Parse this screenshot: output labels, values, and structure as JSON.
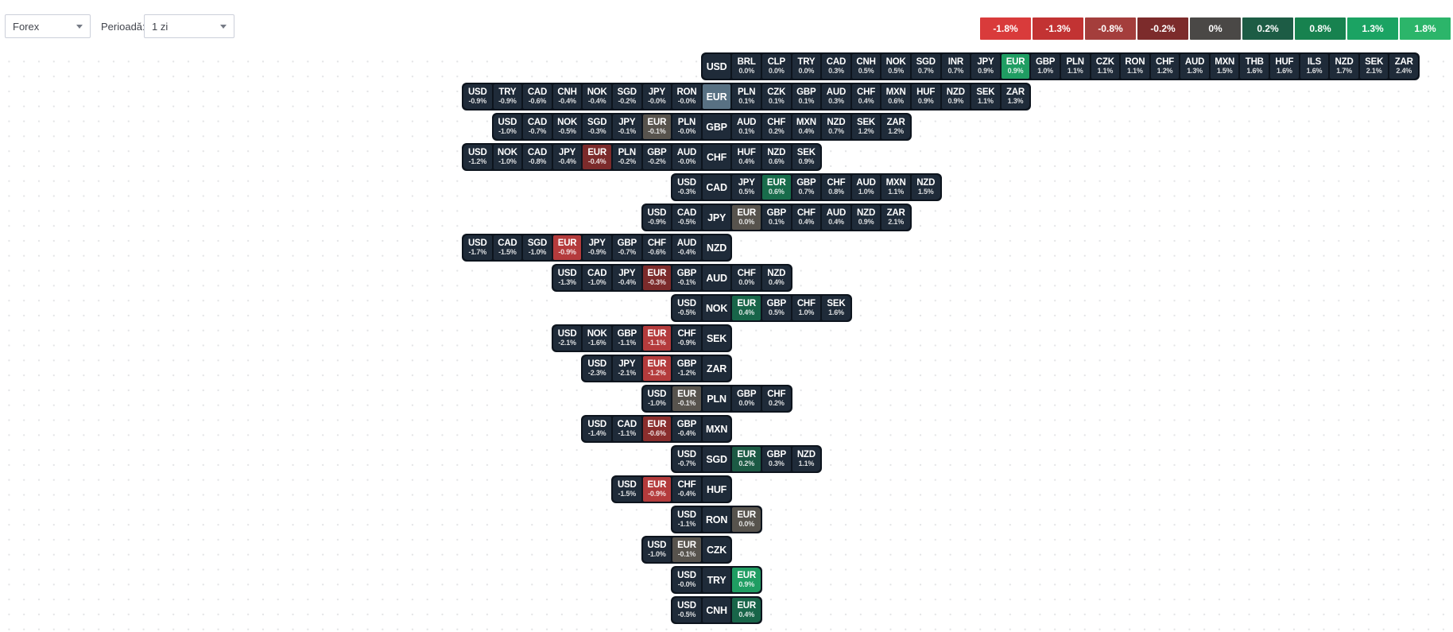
{
  "controls": {
    "market_select": {
      "value": "Forex"
    },
    "period_label": "Perioadă:",
    "period_select": {
      "value": "1 zi"
    }
  },
  "legend": [
    {
      "label": "-1.8%",
      "color": "#d93b3b"
    },
    {
      "label": "-1.3%",
      "color": "#c23333"
    },
    {
      "label": "-0.8%",
      "color": "#a43e3c"
    },
    {
      "label": "-0.2%",
      "color": "#7c2b2b"
    },
    {
      "label": "0%",
      "color": "#4a4846"
    },
    {
      "label": "0.2%",
      "color": "#1d5c45"
    },
    {
      "label": "0.8%",
      "color": "#17824f"
    },
    {
      "label": "1.3%",
      "color": "#1ba363"
    },
    {
      "label": "1.8%",
      "color": "#2cb56a"
    }
  ],
  "palette": {
    "cell": "#1f2b39",
    "frame": "#0d141d",
    "selected": "#587183",
    "neutral": "#57534d",
    "g02": "#1c5a44",
    "g04": "#186549",
    "g06": "#186c4b",
    "g09": "#1f9d62",
    "r34": "#7c2b2b",
    "r06": "#8a2e2d",
    "r9": "#b43b3c"
  },
  "chart_data": {
    "type": "heatmap",
    "market": "Forex",
    "period": "1 zi",
    "unit": "% change",
    "highlighted_currency": "EUR",
    "scale_ticks": [
      "-1.8%",
      "-1.3%",
      "-0.8%",
      "-0.2%",
      "0%",
      "0.2%",
      "0.8%",
      "1.3%",
      "1.8%"
    ],
    "rows": [
      {
        "base": "USD",
        "left": [],
        "right": [
          {
            "c": "BRL",
            "v": 0.0,
            "d": "0.0%"
          },
          {
            "c": "CLP",
            "v": 0.0,
            "d": "0.0%"
          },
          {
            "c": "TRY",
            "v": 0.0,
            "d": "0.0%"
          },
          {
            "c": "CAD",
            "v": 0.3,
            "d": "0.3%"
          },
          {
            "c": "CNH",
            "v": 0.5,
            "d": "0.5%"
          },
          {
            "c": "NOK",
            "v": 0.5,
            "d": "0.5%"
          },
          {
            "c": "SGD",
            "v": 0.7,
            "d": "0.7%"
          },
          {
            "c": "INR",
            "v": 0.7,
            "d": "0.7%"
          },
          {
            "c": "JPY",
            "v": 0.9,
            "d": "0.9%"
          },
          {
            "c": "EUR",
            "v": 0.9,
            "d": "0.9%",
            "tone": "g09"
          },
          {
            "c": "GBP",
            "v": 1.0,
            "d": "1.0%"
          },
          {
            "c": "PLN",
            "v": 1.1,
            "d": "1.1%"
          },
          {
            "c": "CZK",
            "v": 1.1,
            "d": "1.1%"
          },
          {
            "c": "RON",
            "v": 1.1,
            "d": "1.1%"
          },
          {
            "c": "CHF",
            "v": 1.2,
            "d": "1.2%"
          },
          {
            "c": "AUD",
            "v": 1.3,
            "d": "1.3%"
          },
          {
            "c": "MXN",
            "v": 1.5,
            "d": "1.5%"
          },
          {
            "c": "THB",
            "v": 1.6,
            "d": "1.6%"
          },
          {
            "c": "HUF",
            "v": 1.6,
            "d": "1.6%"
          },
          {
            "c": "ILS",
            "v": 1.6,
            "d": "1.6%"
          },
          {
            "c": "NZD",
            "v": 1.7,
            "d": "1.7%"
          },
          {
            "c": "SEK",
            "v": 2.1,
            "d": "2.1%"
          },
          {
            "c": "ZAR",
            "v": 2.4,
            "d": "2.4%"
          }
        ]
      },
      {
        "base": "EUR",
        "left": [
          {
            "c": "USD",
            "v": -0.9,
            "d": "-0.9%"
          },
          {
            "c": "TRY",
            "v": -0.9,
            "d": "-0.9%"
          },
          {
            "c": "CAD",
            "v": -0.6,
            "d": "-0.6%"
          },
          {
            "c": "CNH",
            "v": -0.4,
            "d": "-0.4%"
          },
          {
            "c": "NOK",
            "v": -0.4,
            "d": "-0.4%"
          },
          {
            "c": "SGD",
            "v": -0.2,
            "d": "-0.2%"
          },
          {
            "c": "JPY",
            "v": -0.0,
            "d": "-0.0%"
          },
          {
            "c": "RON",
            "v": -0.0,
            "d": "-0.0%"
          }
        ],
        "right": [
          {
            "c": "PLN",
            "v": 0.1,
            "d": "0.1%"
          },
          {
            "c": "CZK",
            "v": 0.1,
            "d": "0.1%"
          },
          {
            "c": "GBP",
            "v": 0.1,
            "d": "0.1%"
          },
          {
            "c": "AUD",
            "v": 0.3,
            "d": "0.3%"
          },
          {
            "c": "CHF",
            "v": 0.4,
            "d": "0.4%"
          },
          {
            "c": "MXN",
            "v": 0.6,
            "d": "0.6%"
          },
          {
            "c": "HUF",
            "v": 0.9,
            "d": "0.9%"
          },
          {
            "c": "NZD",
            "v": 0.9,
            "d": "0.9%"
          },
          {
            "c": "SEK",
            "v": 1.1,
            "d": "1.1%"
          },
          {
            "c": "ZAR",
            "v": 1.3,
            "d": "1.3%"
          }
        ]
      },
      {
        "base": "GBP",
        "left": [
          {
            "c": "USD",
            "v": -1.0,
            "d": "-1.0%"
          },
          {
            "c": "CAD",
            "v": -0.7,
            "d": "-0.7%"
          },
          {
            "c": "NOK",
            "v": -0.5,
            "d": "-0.5%"
          },
          {
            "c": "SGD",
            "v": -0.3,
            "d": "-0.3%"
          },
          {
            "c": "JPY",
            "v": -0.1,
            "d": "-0.1%"
          },
          {
            "c": "EUR",
            "v": -0.1,
            "d": "-0.1%",
            "tone": "neutral"
          },
          {
            "c": "PLN",
            "v": -0.0,
            "d": "-0.0%"
          }
        ],
        "right": [
          {
            "c": "AUD",
            "v": 0.1,
            "d": "0.1%"
          },
          {
            "c": "CHF",
            "v": 0.2,
            "d": "0.2%"
          },
          {
            "c": "MXN",
            "v": 0.4,
            "d": "0.4%"
          },
          {
            "c": "NZD",
            "v": 0.7,
            "d": "0.7%"
          },
          {
            "c": "SEK",
            "v": 1.2,
            "d": "1.2%"
          },
          {
            "c": "ZAR",
            "v": 1.2,
            "d": "1.2%"
          }
        ]
      },
      {
        "base": "CHF",
        "left": [
          {
            "c": "USD",
            "v": -1.2,
            "d": "-1.2%"
          },
          {
            "c": "NOK",
            "v": -1.0,
            "d": "-1.0%"
          },
          {
            "c": "CAD",
            "v": -0.8,
            "d": "-0.8%"
          },
          {
            "c": "JPY",
            "v": -0.4,
            "d": "-0.4%"
          },
          {
            "c": "EUR",
            "v": -0.4,
            "d": "-0.4%",
            "tone": "r34"
          },
          {
            "c": "PLN",
            "v": -0.2,
            "d": "-0.2%"
          },
          {
            "c": "GBP",
            "v": -0.2,
            "d": "-0.2%"
          },
          {
            "c": "AUD",
            "v": -0.0,
            "d": "-0.0%"
          }
        ],
        "right": [
          {
            "c": "HUF",
            "v": 0.4,
            "d": "0.4%"
          },
          {
            "c": "NZD",
            "v": 0.6,
            "d": "0.6%"
          },
          {
            "c": "SEK",
            "v": 0.9,
            "d": "0.9%"
          }
        ]
      },
      {
        "base": "CAD",
        "left": [
          {
            "c": "USD",
            "v": -0.3,
            "d": "-0.3%"
          }
        ],
        "right": [
          {
            "c": "JPY",
            "v": 0.5,
            "d": "0.5%"
          },
          {
            "c": "EUR",
            "v": 0.6,
            "d": "0.6%",
            "tone": "g06"
          },
          {
            "c": "GBP",
            "v": 0.7,
            "d": "0.7%"
          },
          {
            "c": "CHF",
            "v": 0.8,
            "d": "0.8%"
          },
          {
            "c": "AUD",
            "v": 1.0,
            "d": "1.0%"
          },
          {
            "c": "MXN",
            "v": 1.1,
            "d": "1.1%"
          },
          {
            "c": "NZD",
            "v": 1.5,
            "d": "1.5%"
          }
        ]
      },
      {
        "base": "JPY",
        "left": [
          {
            "c": "USD",
            "v": -0.9,
            "d": "-0.9%"
          },
          {
            "c": "CAD",
            "v": -0.5,
            "d": "-0.5%"
          }
        ],
        "right": [
          {
            "c": "EUR",
            "v": 0.0,
            "d": "0.0%",
            "tone": "neutral"
          },
          {
            "c": "GBP",
            "v": 0.1,
            "d": "0.1%"
          },
          {
            "c": "CHF",
            "v": 0.4,
            "d": "0.4%"
          },
          {
            "c": "AUD",
            "v": 0.4,
            "d": "0.4%"
          },
          {
            "c": "NZD",
            "v": 0.9,
            "d": "0.9%"
          },
          {
            "c": "ZAR",
            "v": 2.1,
            "d": "2.1%"
          }
        ]
      },
      {
        "base": "NZD",
        "left": [
          {
            "c": "USD",
            "v": -1.7,
            "d": "-1.7%"
          },
          {
            "c": "CAD",
            "v": -1.5,
            "d": "-1.5%"
          },
          {
            "c": "SGD",
            "v": -1.0,
            "d": "-1.0%"
          },
          {
            "c": "EUR",
            "v": -0.9,
            "d": "-0.9%",
            "tone": "r9"
          },
          {
            "c": "JPY",
            "v": -0.9,
            "d": "-0.9%"
          },
          {
            "c": "GBP",
            "v": -0.7,
            "d": "-0.7%"
          },
          {
            "c": "CHF",
            "v": -0.6,
            "d": "-0.6%"
          },
          {
            "c": "AUD",
            "v": -0.4,
            "d": "-0.4%"
          }
        ],
        "right": []
      },
      {
        "base": "AUD",
        "left": [
          {
            "c": "USD",
            "v": -1.3,
            "d": "-1.3%"
          },
          {
            "c": "CAD",
            "v": -1.0,
            "d": "-1.0%"
          },
          {
            "c": "JPY",
            "v": -0.4,
            "d": "-0.4%"
          },
          {
            "c": "EUR",
            "v": -0.3,
            "d": "-0.3%",
            "tone": "r34"
          },
          {
            "c": "GBP",
            "v": -0.1,
            "d": "-0.1%"
          }
        ],
        "right": [
          {
            "c": "CHF",
            "v": 0.0,
            "d": "0.0%"
          },
          {
            "c": "NZD",
            "v": 0.4,
            "d": "0.4%"
          }
        ]
      },
      {
        "base": "NOK",
        "left": [
          {
            "c": "USD",
            "v": -0.5,
            "d": "-0.5%"
          }
        ],
        "right": [
          {
            "c": "EUR",
            "v": 0.4,
            "d": "0.4%",
            "tone": "g04"
          },
          {
            "c": "GBP",
            "v": 0.5,
            "d": "0.5%"
          },
          {
            "c": "CHF",
            "v": 1.0,
            "d": "1.0%"
          },
          {
            "c": "SEK",
            "v": 1.6,
            "d": "1.6%"
          }
        ]
      },
      {
        "base": "SEK",
        "left": [
          {
            "c": "USD",
            "v": -2.1,
            "d": "-2.1%"
          },
          {
            "c": "NOK",
            "v": -1.6,
            "d": "-1.6%"
          },
          {
            "c": "GBP",
            "v": -1.1,
            "d": "-1.1%"
          },
          {
            "c": "EUR",
            "v": -1.1,
            "d": "-1.1%",
            "tone": "r9"
          },
          {
            "c": "CHF",
            "v": -0.9,
            "d": "-0.9%"
          }
        ],
        "right": []
      },
      {
        "base": "ZAR",
        "left": [
          {
            "c": "USD",
            "v": -2.3,
            "d": "-2.3%"
          },
          {
            "c": "JPY",
            "v": -2.1,
            "d": "-2.1%"
          },
          {
            "c": "EUR",
            "v": -1.2,
            "d": "-1.2%",
            "tone": "r9"
          },
          {
            "c": "GBP",
            "v": -1.2,
            "d": "-1.2%"
          }
        ],
        "right": []
      },
      {
        "base": "PLN",
        "left": [
          {
            "c": "USD",
            "v": -1.0,
            "d": "-1.0%"
          },
          {
            "c": "EUR",
            "v": -0.1,
            "d": "-0.1%",
            "tone": "neutral"
          }
        ],
        "right": [
          {
            "c": "GBP",
            "v": 0.0,
            "d": "0.0%"
          },
          {
            "c": "CHF",
            "v": 0.2,
            "d": "0.2%"
          }
        ]
      },
      {
        "base": "MXN",
        "left": [
          {
            "c": "USD",
            "v": -1.4,
            "d": "-1.4%"
          },
          {
            "c": "CAD",
            "v": -1.1,
            "d": "-1.1%"
          },
          {
            "c": "EUR",
            "v": -0.6,
            "d": "-0.6%",
            "tone": "r06"
          },
          {
            "c": "GBP",
            "v": -0.4,
            "d": "-0.4%"
          }
        ],
        "right": []
      },
      {
        "base": "SGD",
        "left": [
          {
            "c": "USD",
            "v": -0.7,
            "d": "-0.7%"
          }
        ],
        "right": [
          {
            "c": "EUR",
            "v": 0.2,
            "d": "0.2%",
            "tone": "g02"
          },
          {
            "c": "GBP",
            "v": 0.3,
            "d": "0.3%"
          },
          {
            "c": "NZD",
            "v": 1.1,
            "d": "1.1%"
          }
        ]
      },
      {
        "base": "HUF",
        "left": [
          {
            "c": "USD",
            "v": -1.5,
            "d": "-1.5%"
          },
          {
            "c": "EUR",
            "v": -0.9,
            "d": "-0.9%",
            "tone": "r9"
          },
          {
            "c": "CHF",
            "v": -0.4,
            "d": "-0.4%"
          }
        ],
        "right": []
      },
      {
        "base": "RON",
        "left": [
          {
            "c": "USD",
            "v": -1.1,
            "d": "-1.1%"
          }
        ],
        "right": [
          {
            "c": "EUR",
            "v": 0.0,
            "d": "0.0%",
            "tone": "neutral"
          }
        ]
      },
      {
        "base": "CZK",
        "left": [
          {
            "c": "USD",
            "v": -1.0,
            "d": "-1.0%"
          },
          {
            "c": "EUR",
            "v": -0.1,
            "d": "-0.1%",
            "tone": "neutral"
          }
        ],
        "right": []
      },
      {
        "base": "TRY",
        "left": [
          {
            "c": "USD",
            "v": -0.0,
            "d": "-0.0%"
          }
        ],
        "right": [
          {
            "c": "EUR",
            "v": 0.9,
            "d": "0.9%",
            "tone": "g09"
          }
        ]
      },
      {
        "base": "CNH",
        "left": [
          {
            "c": "USD",
            "v": -0.5,
            "d": "-0.5%"
          }
        ],
        "right": [
          {
            "c": "EUR",
            "v": 0.4,
            "d": "0.4%",
            "tone": "g04"
          }
        ]
      }
    ]
  }
}
